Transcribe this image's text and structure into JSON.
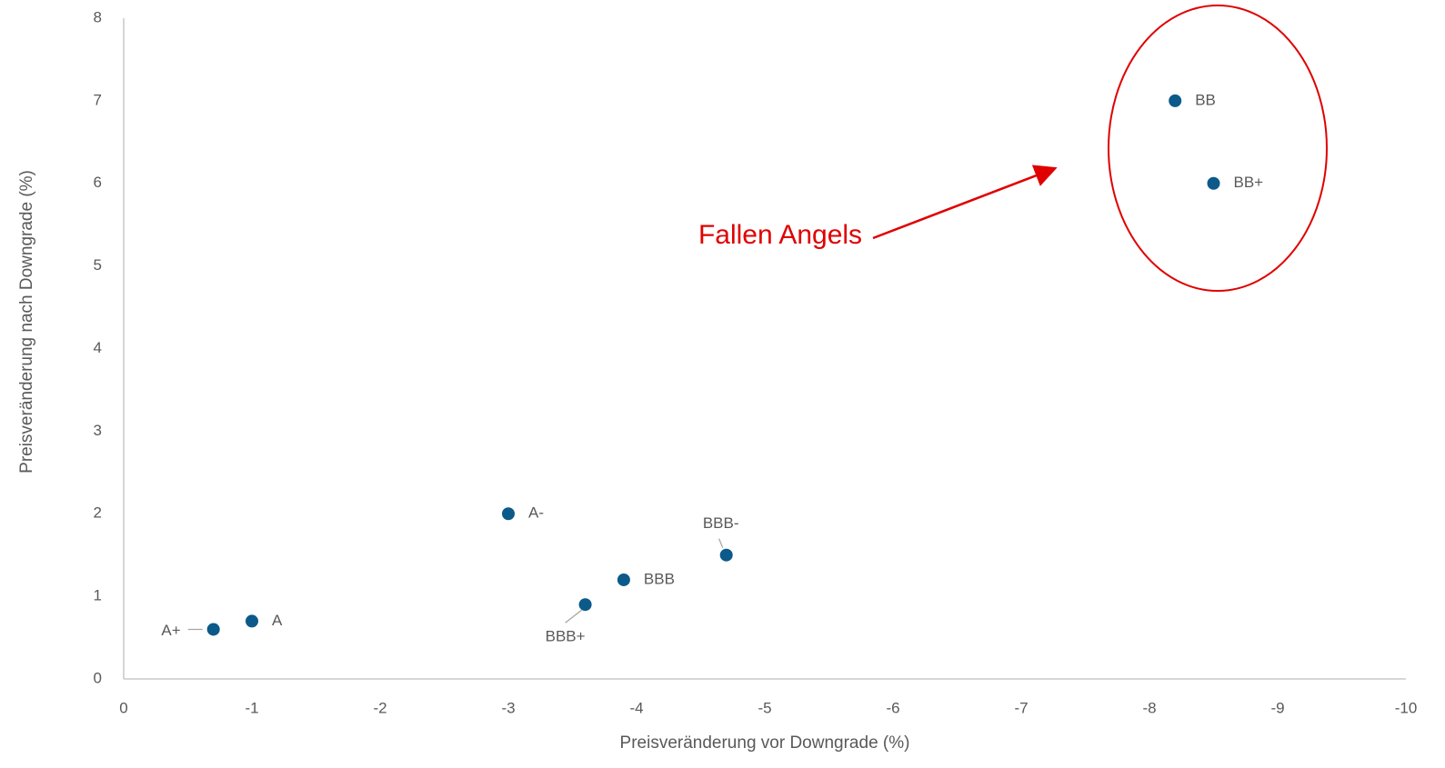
{
  "chart_data": {
    "type": "scatter",
    "xlabel": "Preisveränderung vor Downgrade (%)",
    "ylabel": "Preisveränderung nach Downgrade (%)",
    "annotation": "Fallen Angels",
    "labels": [
      "A+",
      "A",
      "A-",
      "BBB+",
      "BBB",
      "BBB-",
      "BB",
      "BB+"
    ],
    "x": [
      -0.7,
      -1.0,
      -3.0,
      -3.6,
      -3.9,
      -4.7,
      -8.2,
      -8.5
    ],
    "values": [
      0.6,
      0.7,
      2.0,
      0.9,
      1.2,
      1.5,
      7.0,
      6.0
    ],
    "color": "#0b5a8a",
    "xlim": [
      0,
      -10
    ],
    "xticks": [
      0,
      -1,
      -2,
      -3,
      -4,
      -5,
      -6,
      -7,
      -8,
      -9,
      -10
    ],
    "ylim": [
      0,
      8
    ],
    "yticks": [
      0,
      1,
      2,
      3,
      4,
      5,
      6,
      7,
      8
    ],
    "grid": false
  }
}
